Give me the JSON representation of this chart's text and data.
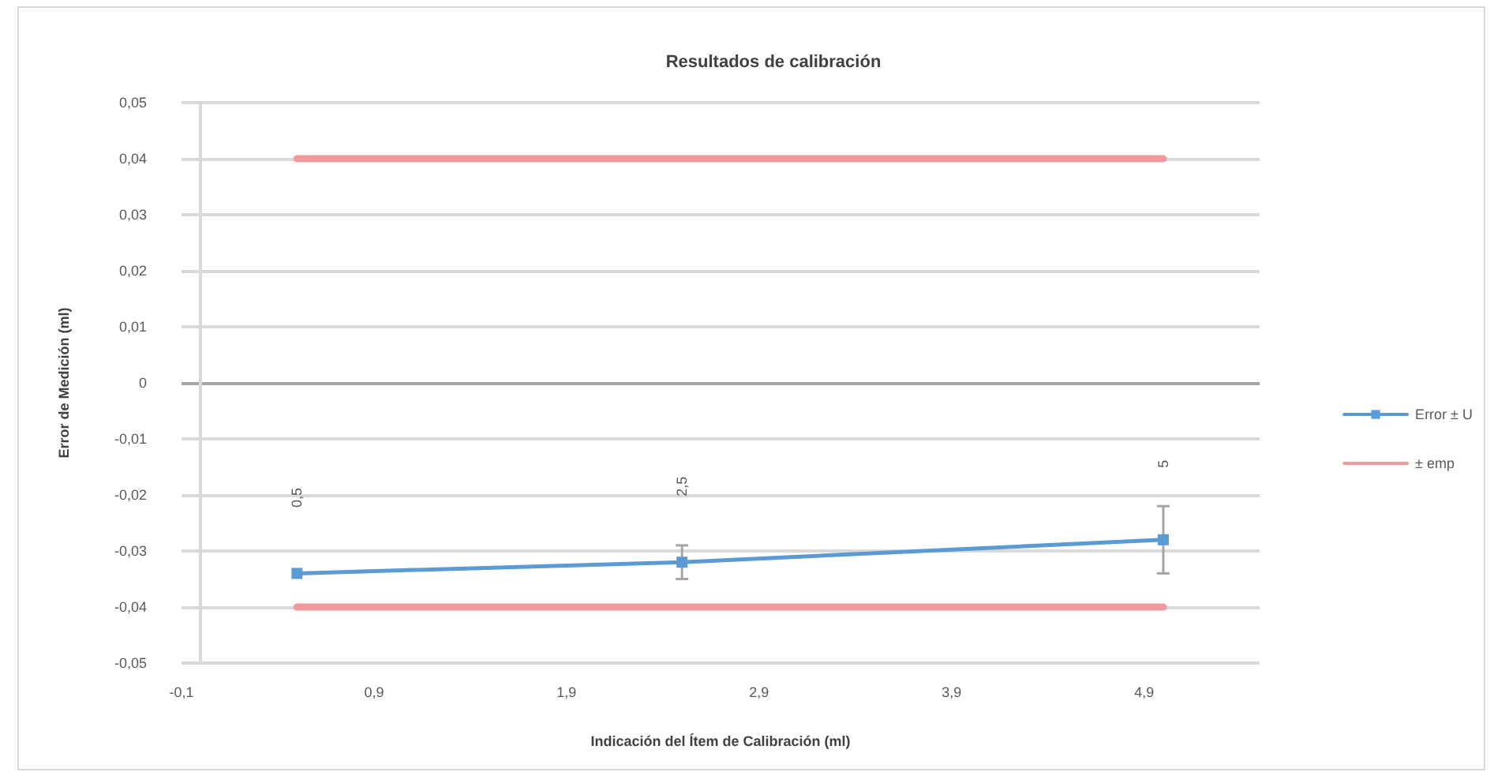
{
  "chart_data": {
    "type": "line",
    "title": "Resultados de calibración",
    "xlabel": "Indicación del Ítem de Calibración (ml)",
    "ylabel": "Error de Medición (ml)",
    "xlim": [
      -0.1,
      5.5
    ],
    "xticks": [
      {
        "value": -0.1,
        "label": "-0,1"
      },
      {
        "value": 0.9,
        "label": "0,9"
      },
      {
        "value": 1.9,
        "label": "1,9"
      },
      {
        "value": 2.9,
        "label": "2,9"
      },
      {
        "value": 3.9,
        "label": "3,9"
      },
      {
        "value": 4.9,
        "label": "4,9"
      }
    ],
    "ylim": [
      -0.05,
      0.05
    ],
    "yticks": [
      {
        "value": -0.05,
        "label": "-0,05"
      },
      {
        "value": -0.04,
        "label": "-0,04"
      },
      {
        "value": -0.03,
        "label": "-0,03"
      },
      {
        "value": -0.02,
        "label": "-0,02"
      },
      {
        "value": -0.01,
        "label": "-0,01"
      },
      0,
      {
        "value": 0.01,
        "label": "0,01"
      },
      {
        "value": 0.02,
        "label": "0,02"
      },
      {
        "value": 0.03,
        "label": "0,03"
      },
      {
        "value": 0.04,
        "label": "0,04"
      },
      {
        "value": 0.05,
        "label": "0,05"
      }
    ],
    "grid": "y",
    "legend": "right",
    "series": [
      {
        "name": "Error ± U",
        "color": "#5b9bd5",
        "x": [
          0.5,
          2.5,
          5
        ],
        "values": [
          -0.034,
          -0.032,
          -0.028
        ],
        "errors": [
          null,
          0.003,
          0.006
        ],
        "marker": "square"
      },
      {
        "name": "± emp",
        "color": "#f19a9e",
        "x": [
          0.5,
          5
        ],
        "values": [
          0.04,
          0.04
        ],
        "marker": "none"
      },
      {
        "color": "#f19a9e",
        "x": [
          0.5,
          5
        ],
        "values": [
          -0.04,
          -0.04
        ],
        "marker": "none"
      }
    ],
    "annotations": [
      "0,5",
      "2,5",
      "5"
    ]
  }
}
